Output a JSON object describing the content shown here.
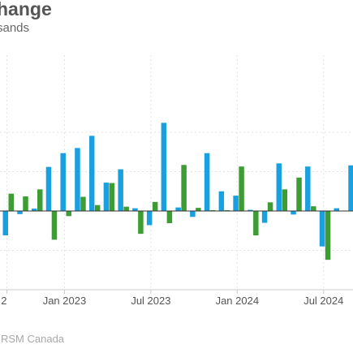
{
  "header": {
    "title": "hange",
    "subtitle": "sands"
  },
  "footer": {
    "source": "RSM Canada"
  },
  "chart_data": {
    "type": "bar",
    "grid": true,
    "ylim": [
      -200,
      200
    ],
    "y_gridlines": [
      -100,
      0,
      100,
      200
    ],
    "x_tick_labels": [
      {
        "label": "2",
        "index": 0
      },
      {
        "label": "Jan 2023",
        "index": 4
      },
      {
        "label": "Jul 2023",
        "index": 10
      },
      {
        "label": "Jan 2024",
        "index": 16
      },
      {
        "label": "Jul 2024",
        "index": 22
      }
    ],
    "colors": {
      "series_1": "#19a0e0",
      "series_2": "#3e9c35"
    },
    "series": [
      {
        "values": [
          -62,
          -8,
          6,
          112,
          147,
          160,
          191,
          72,
          106,
          7,
          -36,
          224,
          9,
          -15,
          147,
          50,
          39,
          3,
          -30,
          121,
          -9,
          113,
          -90,
          7,
          116
        ]
      },
      {
        "values": [
          44,
          37,
          55,
          -73,
          -13,
          36,
          15,
          71,
          11,
          -58,
          23,
          -31,
          117,
          8,
          2,
          2,
          113,
          -62,
          22,
          55,
          85,
          12,
          -124,
          1,
          3
        ]
      }
    ]
  }
}
